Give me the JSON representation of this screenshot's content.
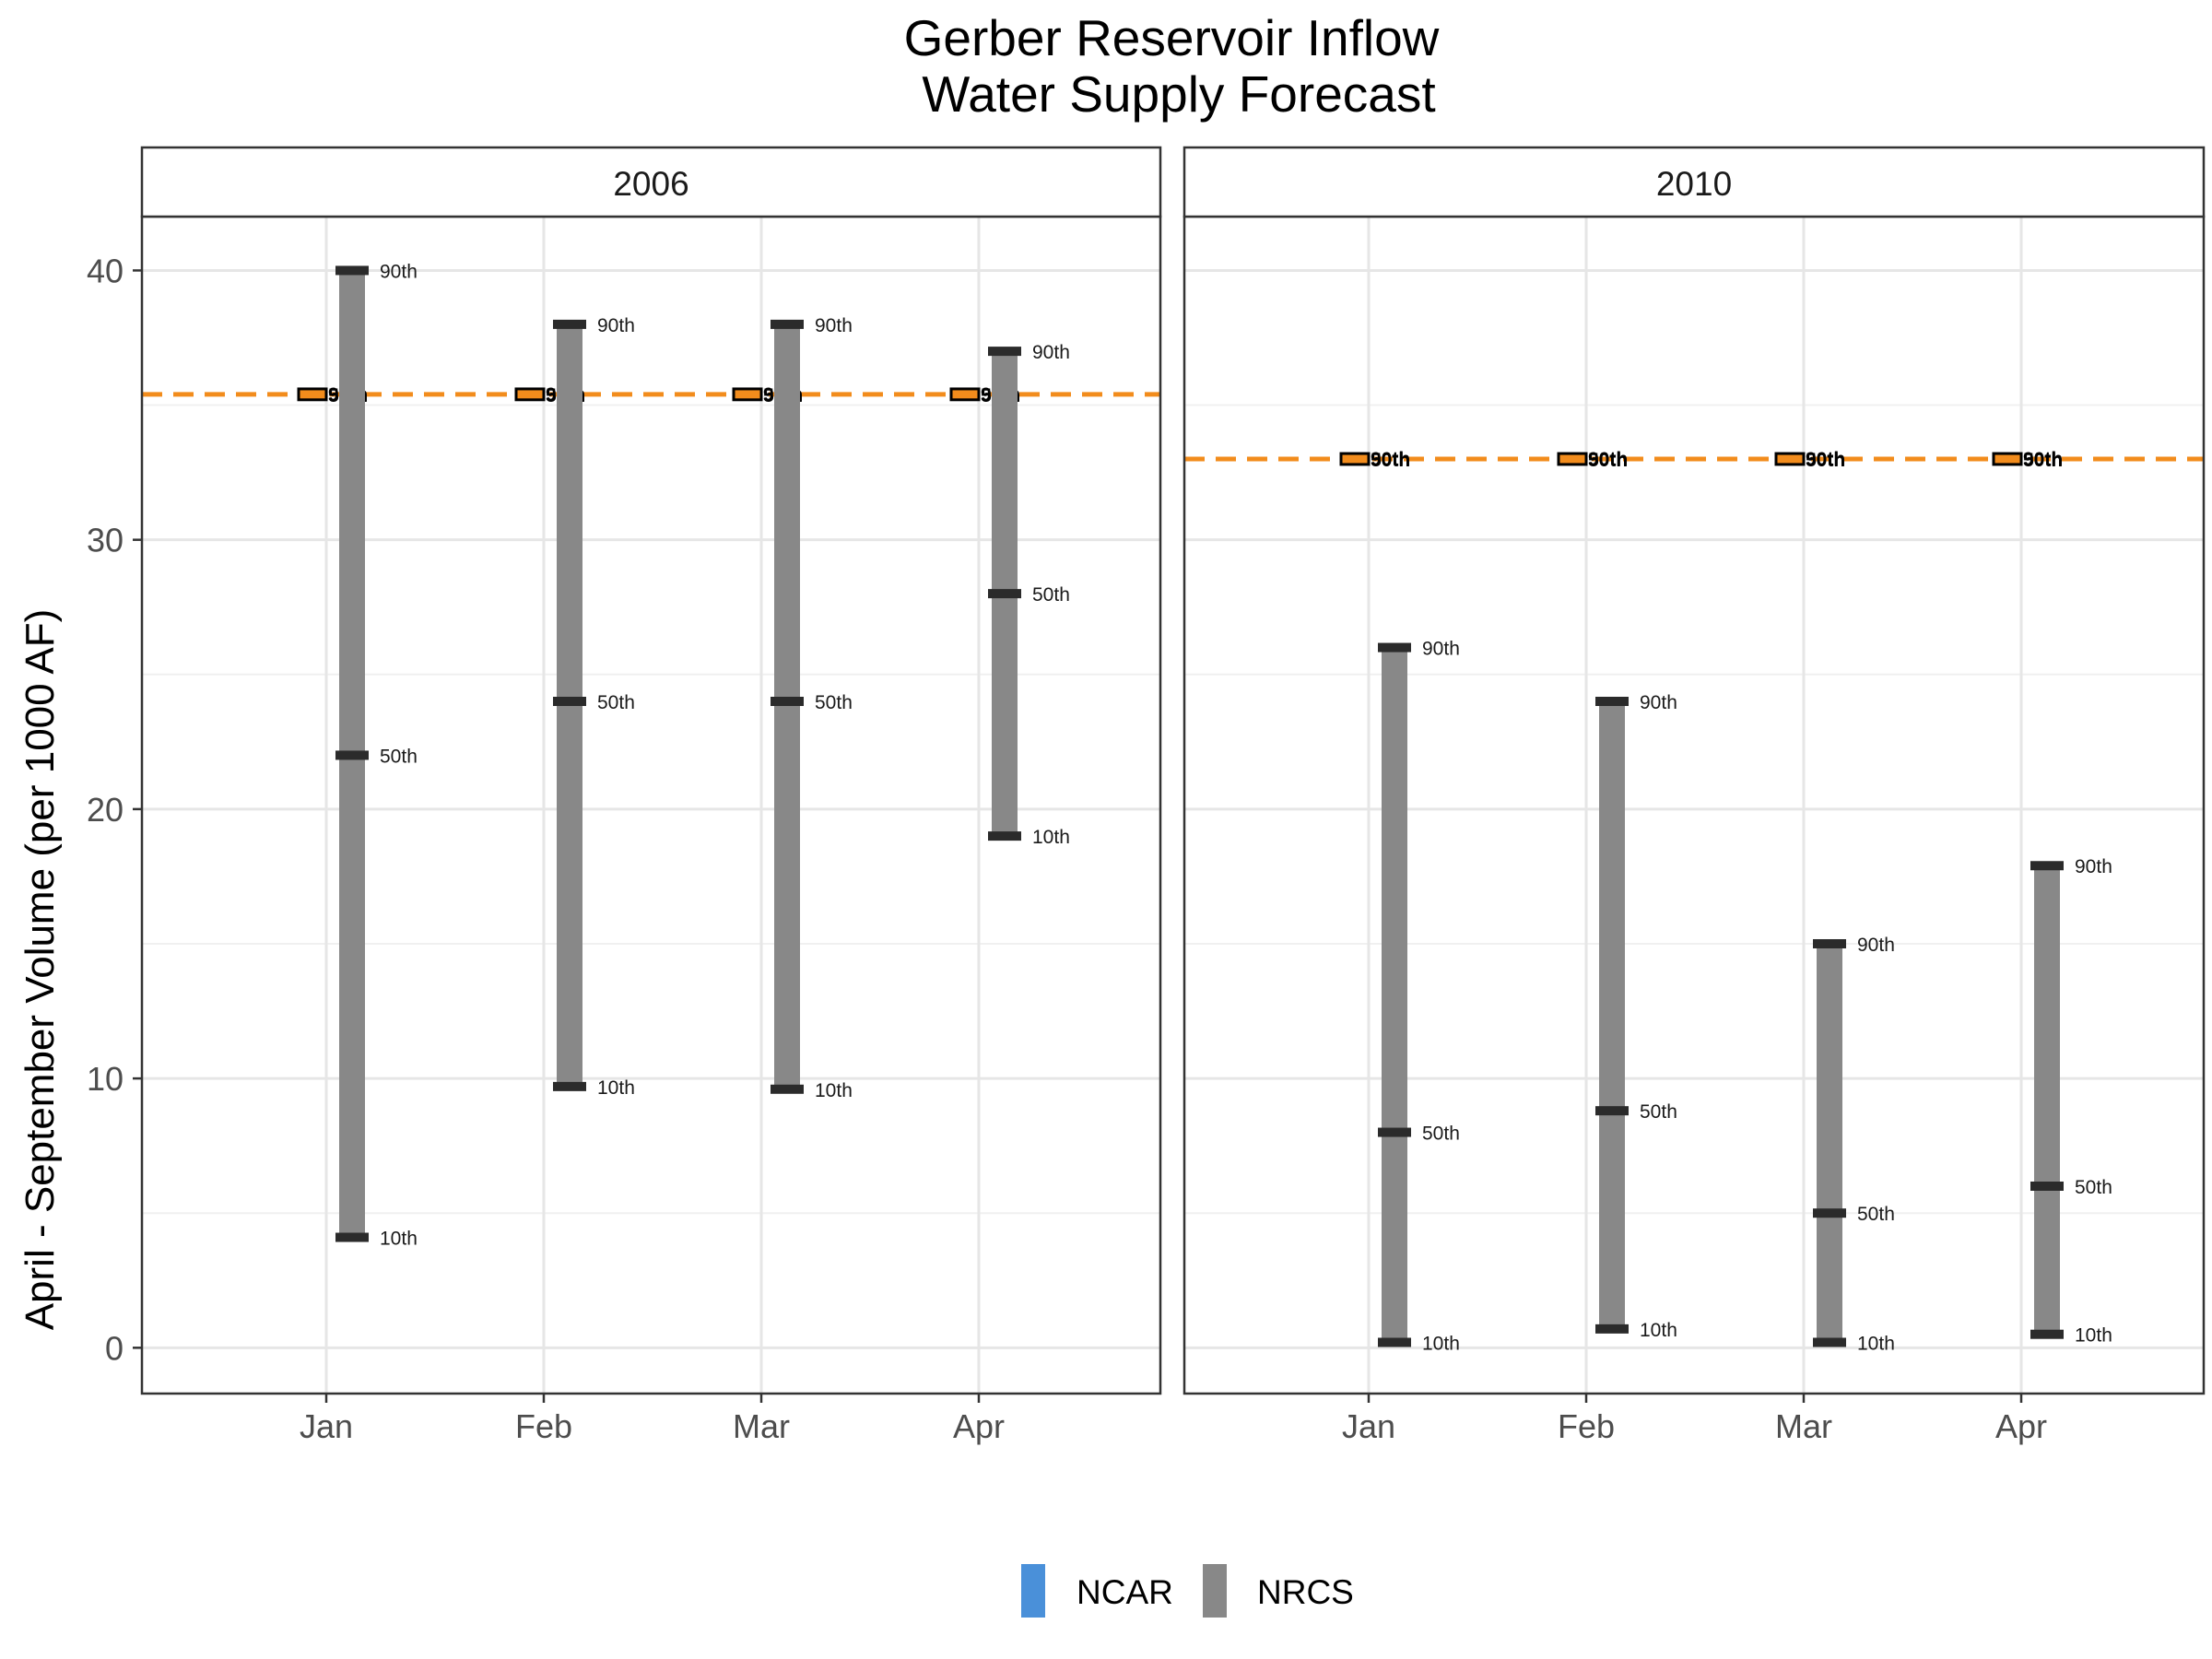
{
  "title_line1": "Gerber Reservoir Inflow",
  "title_line2": "Water Supply Forecast",
  "ylabel": "April - September Volume (per 1000 AF)",
  "months": [
    "Jan",
    "Feb",
    "Mar",
    "Apr"
  ],
  "yticks": [
    "0",
    "10",
    "20",
    "30",
    "40"
  ],
  "percentile_labels": {
    "p10": "10th",
    "p50": "50th",
    "p90": "90th"
  },
  "legend": [
    {
      "name": "NCAR",
      "color": "#4a90d9"
    },
    {
      "name": "NRCS",
      "color": "#888888"
    }
  ],
  "colors": {
    "observed_line": "#f28c1c",
    "nrcs_bar": "#888888",
    "tick": "#2b2b2b",
    "ncar_box": "#f28c1c"
  },
  "chart_data": {
    "type": "range",
    "ylabel": "April - September Volume (per 1000 AF)",
    "ylim": [
      -1.7,
      42
    ],
    "grid": true,
    "legend_position": "bottom",
    "panels": [
      {
        "label": "2006",
        "observed": 35.4,
        "ncar": [
          {
            "month": "Jan",
            "p10": 35.3,
            "p50": 35.4,
            "p90": 35.5
          },
          {
            "month": "Feb",
            "p10": 35.3,
            "p50": 35.4,
            "p90": 35.5
          },
          {
            "month": "Mar",
            "p10": 35.3,
            "p50": 35.4,
            "p90": 35.5
          },
          {
            "month": "Apr",
            "p10": 35.3,
            "p50": 35.4,
            "p90": 35.5
          }
        ],
        "nrcs": [
          {
            "month": "Jan",
            "p10": 4.1,
            "p50": 22.0,
            "p90": 40.0
          },
          {
            "month": "Feb",
            "p10": 9.7,
            "p50": 24.0,
            "p90": 38.0
          },
          {
            "month": "Mar",
            "p10": 9.6,
            "p50": 24.0,
            "p90": 38.0
          },
          {
            "month": "Apr",
            "p10": 19.0,
            "p50": 28.0,
            "p90": 37.0
          }
        ]
      },
      {
        "label": "2010",
        "observed": 33.0,
        "ncar": [
          {
            "month": "Jan",
            "p10": 32.9,
            "p50": 33.0,
            "p90": 33.1
          },
          {
            "month": "Feb",
            "p10": 32.9,
            "p50": 33.0,
            "p90": 33.1
          },
          {
            "month": "Mar",
            "p10": 32.9,
            "p50": 33.0,
            "p90": 33.1
          },
          {
            "month": "Apr",
            "p10": 32.9,
            "p50": 33.0,
            "p90": 33.1
          }
        ],
        "nrcs": [
          {
            "month": "Jan",
            "p10": 0.2,
            "p50": 8.0,
            "p90": 26.0
          },
          {
            "month": "Feb",
            "p10": 0.7,
            "p50": 8.8,
            "p90": 24.0
          },
          {
            "month": "Mar",
            "p10": 0.2,
            "p50": 5.0,
            "p90": 15.0
          },
          {
            "month": "Apr",
            "p10": 0.5,
            "p50": 6.0,
            "p90": 17.9
          }
        ]
      }
    ]
  }
}
